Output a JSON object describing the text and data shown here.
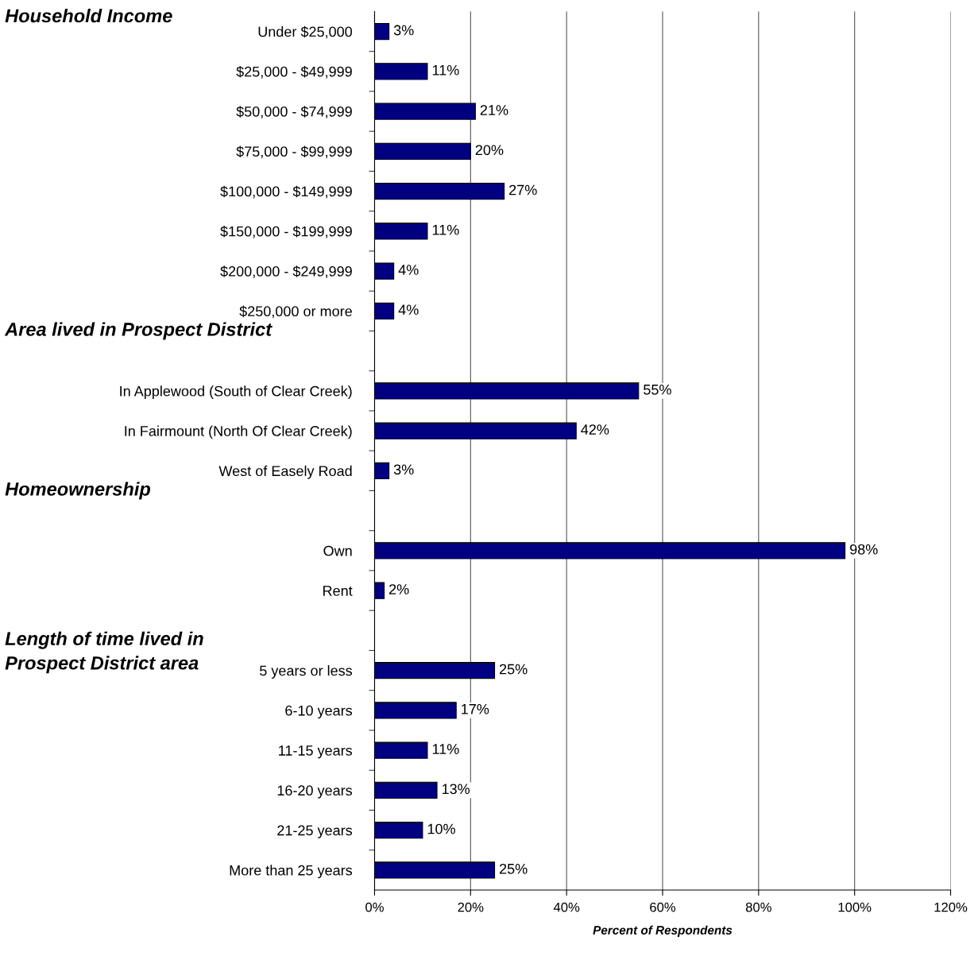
{
  "chart_data": {
    "type": "bar",
    "orientation": "horizontal",
    "xlabel": "Percent of Respondents",
    "categories": [
      "Under $25,000",
      "$25,000 - $49,999",
      "$50,000 - $74,999",
      "$75,000 - $99,999",
      "$100,000 - $149,999",
      "$150,000 - $199,999",
      "$200,000 - $249,999",
      "$250,000 or more",
      null,
      "In Applewood (South of Clear Creek)",
      "In Fairmount (North Of Clear Creek)",
      "West of Easely Road",
      null,
      "Own",
      "Rent",
      null,
      "5 years or less",
      "6-10 years",
      "11-15 years",
      "16-20 years",
      "21-25 years",
      "More than 25 years"
    ],
    "series": [
      {
        "color": "#000080",
        "values": [
          3,
          11,
          21,
          20,
          27,
          11,
          4,
          4,
          null,
          55,
          42,
          3,
          null,
          98,
          2,
          null,
          25,
          17,
          11,
          13,
          10,
          25
        ],
        "value_labels": [
          "3%",
          "11%",
          "21%",
          "20%",
          "27%",
          "11%",
          "4%",
          "4%",
          null,
          "55%",
          "42%",
          "3%",
          null,
          "98%",
          "2%",
          null,
          "25%",
          "17%",
          "11%",
          "13%",
          "10%",
          "25%"
        ]
      }
    ],
    "xlim": [
      0,
      120
    ],
    "xticks": [
      {
        "value": 0,
        "label": "0%"
      },
      {
        "value": 20,
        "label": "20%"
      },
      {
        "value": 40,
        "label": "40%"
      },
      {
        "value": 60,
        "label": "60%"
      },
      {
        "value": 80,
        "label": "80%"
      },
      {
        "value": 100,
        "label": "100%"
      },
      {
        "value": 120,
        "label": "120%"
      }
    ],
    "grid": "x",
    "annotations": [
      "Household Income",
      "Area lived in Prospect District",
      "Homeownership",
      "Length of time lived in\nProspect District area"
    ]
  }
}
